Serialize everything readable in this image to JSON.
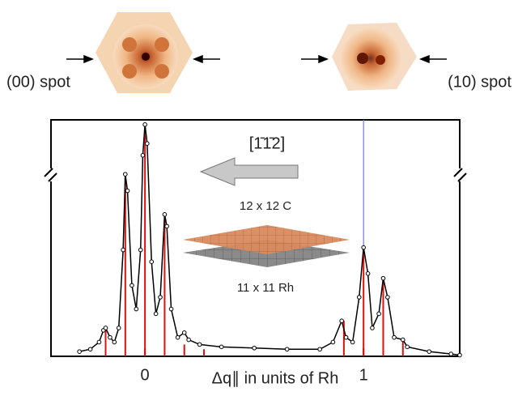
{
  "chart_data": {
    "type": "line",
    "labels": {
      "left_spot": "(00) spot",
      "right_spot": "(10) spot",
      "direction": "[1̄1̄2]",
      "top_layer": "12 x 12 C",
      "bottom_layer": "11 x 11 Rh"
    },
    "xlabel": "Δq∥ in units of Rh",
    "xlim": [
      -0.43,
      1.44
    ],
    "ylim": [
      0,
      100
    ],
    "xticks": [
      0,
      1
    ],
    "x": [
      -0.3,
      -0.25,
      -0.21,
      -0.19,
      -0.18,
      -0.16,
      -0.14,
      -0.12,
      -0.1,
      -0.09,
      -0.08,
      -0.06,
      -0.04,
      -0.02,
      -0.01,
      0.0,
      0.01,
      0.03,
      0.05,
      0.07,
      0.09,
      0.1,
      0.12,
      0.15,
      0.18,
      0.2,
      0.25,
      0.35,
      0.5,
      0.65,
      0.8,
      0.86,
      0.9,
      0.92,
      0.95,
      0.98,
      1.0,
      1.02,
      1.04,
      1.07,
      1.09,
      1.11,
      1.14,
      1.18,
      1.2,
      1.3,
      1.4,
      1.44
    ],
    "series": [
      {
        "color": "#000000",
        "values": [
          2,
          3,
          6,
          11,
          12,
          8,
          6,
          12,
          45,
          77,
          70,
          30,
          20,
          45,
          85,
          98,
          90,
          40,
          18,
          25,
          60,
          55,
          20,
          8,
          10,
          7,
          5,
          4,
          3.5,
          3,
          3,
          6,
          15,
          8,
          6,
          25,
          46,
          35,
          12,
          18,
          33,
          25,
          8,
          7,
          4,
          2,
          1,
          0.5
        ]
      }
    ],
    "sticks": {
      "color": "#dd1111",
      "x": [
        -0.18,
        -0.09,
        0,
        0.09,
        0.18,
        0.27,
        0.91,
        1,
        1.09,
        1.18
      ],
      "values": [
        12,
        77,
        98,
        60,
        5,
        3,
        15,
        46,
        33,
        7
      ]
    },
    "vline": {
      "x": 1,
      "color": "#7777cc"
    }
  }
}
